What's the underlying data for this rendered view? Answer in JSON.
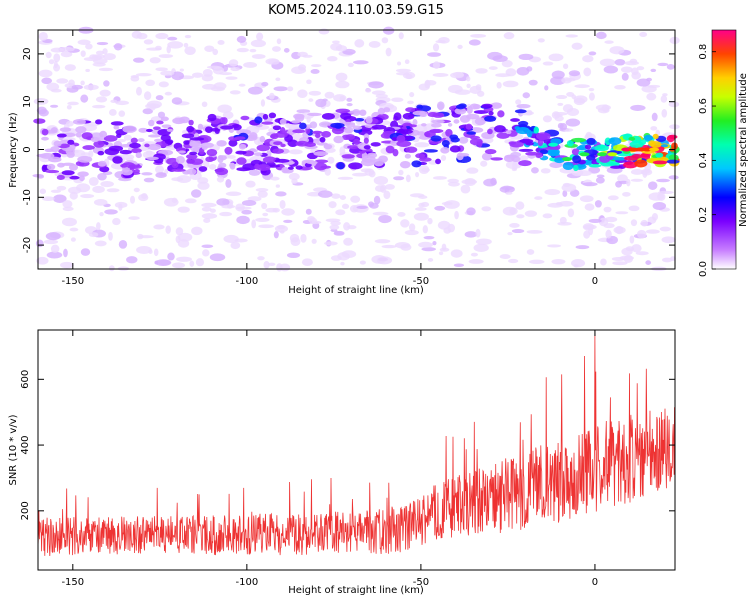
{
  "figure_title": "KOM5.2024.110.03.59.G15",
  "chart_data": [
    {
      "type": "heatmap",
      "xlabel": "Height of straight line (km)",
      "ylabel": "Frequency (Hz)",
      "xlim": [
        -160,
        23
      ],
      "ylim": [
        -25,
        25
      ],
      "xticks": [
        -150,
        -100,
        -50,
        0
      ],
      "yticks": [
        -20,
        -10,
        0,
        10,
        20
      ],
      "grid": false,
      "colorbar": {
        "label": "Normalized spectral amplitude",
        "range": [
          0.0,
          0.88
        ],
        "ticks": [
          0.0,
          0.2,
          0.4,
          0.6,
          0.8
        ],
        "tick_labels": [
          "0.0",
          "0.2",
          "0.4",
          "0.6",
          "0.8"
        ],
        "colormap": "rainbow"
      },
      "signal_trace": {
        "description_points": [
          {
            "x": -160,
            "freq": 0,
            "amp": 0.25
          },
          {
            "x": -140,
            "freq": 0,
            "amp": 0.28
          },
          {
            "x": -100,
            "freq": 1,
            "amp": 0.3
          },
          {
            "x": -50,
            "freq": 3,
            "amp": 0.32
          },
          {
            "x": -25,
            "freq": 4,
            "amp": 0.35
          },
          {
            "x": -15,
            "freq": 1,
            "amp": 0.45
          },
          {
            "x": -5,
            "freq": -1,
            "amp": 0.5
          },
          {
            "x": 5,
            "freq": -1,
            "amp": 0.6
          },
          {
            "x": 12,
            "freq": 0,
            "amp": 0.88
          },
          {
            "x": 20,
            "freq": 0,
            "amp": 0.85
          }
        ]
      }
    },
    {
      "type": "line",
      "xlabel": "Height of straight line (km)",
      "ylabel": "SNR (10 * v/v)",
      "xlim": [
        -160,
        23
      ],
      "ylim": [
        20,
        750
      ],
      "xticks": [
        -150,
        -100,
        -50,
        0
      ],
      "yticks": [
        200,
        400,
        600
      ],
      "grid": false,
      "series": [
        {
          "color": "#ee3333",
          "trend": [
            {
              "x": -160,
              "mean": 120,
              "spread": 60
            },
            {
              "x": -120,
              "mean": 125,
              "spread": 60
            },
            {
              "x": -80,
              "mean": 130,
              "spread": 65
            },
            {
              "x": -55,
              "mean": 140,
              "spread": 70
            },
            {
              "x": -45,
              "mean": 200,
              "spread": 90
            },
            {
              "x": -20,
              "mean": 260,
              "spread": 120
            },
            {
              "x": 0,
              "mean": 330,
              "spread": 140
            },
            {
              "x": 23,
              "mean": 400,
              "spread": 130
            }
          ],
          "peak": {
            "x": 0,
            "y": 740
          }
        }
      ]
    }
  ]
}
